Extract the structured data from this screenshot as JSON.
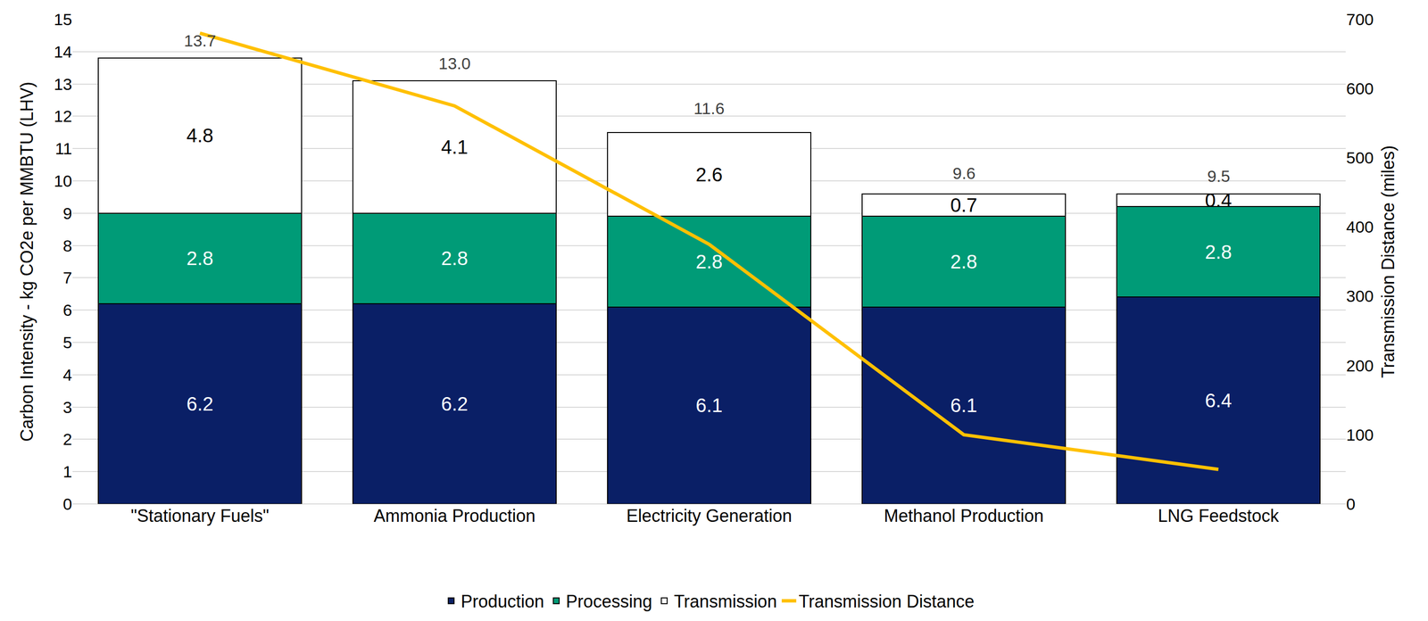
{
  "chart_data": {
    "type": "bar",
    "stacked": true,
    "data_labels": true,
    "grid": true,
    "legend": "bottom",
    "y_label": "Carbon Intensity - kg CO2e per MMBTU (LHV)",
    "y2_label": "Transmission Distance (miles)",
    "categories": [
      "\"Stationary Fuels\"",
      "Ammonia Production",
      "Electricity Generation",
      "Methanol Production",
      "LNG Feedstock"
    ],
    "series": [
      {
        "name": "Production",
        "type": "bar",
        "color": "#0a1f66",
        "values": [
          6.2,
          6.2,
          6.1,
          6.1,
          6.4
        ]
      },
      {
        "name": "Processing",
        "type": "bar",
        "color": "#009b77",
        "values": [
          2.8,
          2.8,
          2.8,
          2.8,
          2.8
        ]
      },
      {
        "name": "Transmission",
        "type": "bar",
        "color": "#ffffff",
        "values": [
          4.8,
          4.1,
          2.6,
          0.7,
          0.4
        ]
      },
      {
        "name": "Transmission Distance",
        "type": "line",
        "axis": "y2",
        "color": "#ffc000",
        "values": [
          680,
          575,
          375,
          100,
          50
        ]
      }
    ],
    "totals": [
      13.7,
      13.0,
      11.6,
      9.6,
      9.5
    ],
    "total_labels": [
      "13.7",
      "13.0",
      "11.6",
      "9.6",
      "9.5"
    ],
    "ylim": [
      0,
      15
    ],
    "yticks": [
      0,
      1,
      2,
      3,
      4,
      5,
      6,
      7,
      8,
      9,
      10,
      11,
      12,
      13,
      14,
      15
    ],
    "y2lim": [
      0,
      700
    ],
    "y2ticks": [
      0,
      100,
      200,
      300,
      400,
      500,
      600,
      700
    ]
  }
}
